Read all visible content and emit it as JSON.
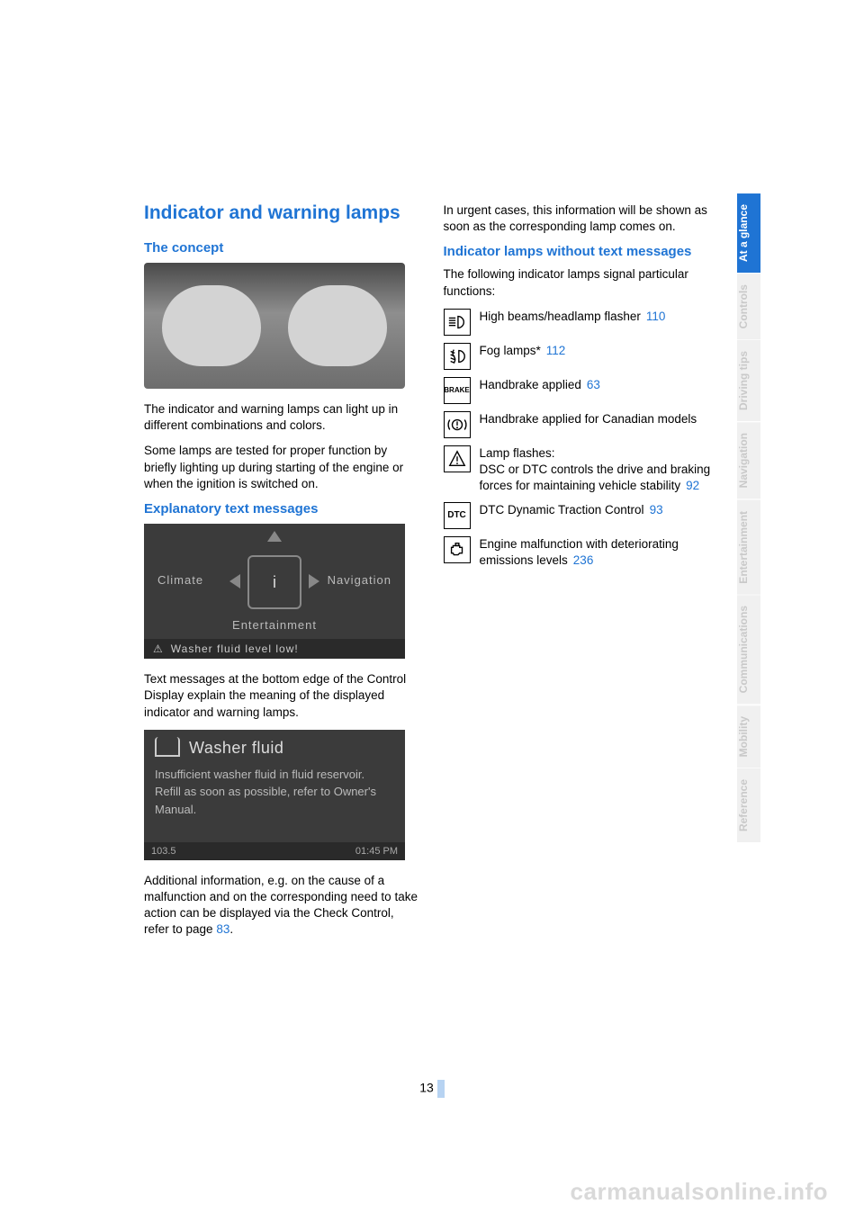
{
  "colors": {
    "link": "#1f74d4",
    "heading": "#1f74d4",
    "body_text": "#000000",
    "tab_inactive_bg": "#f0f0f0",
    "tab_inactive_fg": "#c9c9c9",
    "tab_active_bg": "#1f74d4",
    "tab_active_fg": "#ffffff",
    "watermark": "#d9d9d9",
    "figure_bg": "#3b3b3b"
  },
  "page_number": "13",
  "watermark": "carmanualsonline.info",
  "side_tabs": [
    {
      "label": "At a glance",
      "active": true
    },
    {
      "label": "Controls",
      "active": false
    },
    {
      "label": "Driving tips",
      "active": false
    },
    {
      "label": "Navigation",
      "active": false
    },
    {
      "label": "Entertainment",
      "active": false
    },
    {
      "label": "Communications",
      "active": false
    },
    {
      "label": "Mobility",
      "active": false
    },
    {
      "label": "Reference",
      "active": false
    }
  ],
  "left": {
    "title": "Indicator and warning lamps",
    "concept_heading": "The concept",
    "concept_p1": "The indicator and warning lamps can light up in different combinations and colors.",
    "concept_p2": "Some lamps are tested for proper function by briefly lighting up during starting of the engine or when the ignition is switched on.",
    "explanatory_heading": "Explanatory text messages",
    "idrive": {
      "climate": "Climate",
      "navigation": "Navigation",
      "entertainment": "Entertainment",
      "warning": "Washer fluid level low!",
      "info_glyph": "i"
    },
    "explanatory_p1": "Text messages at the bottom edge of the Control Display explain the meaning of the displayed indicator and warning lamps.",
    "washer": {
      "title": "Washer fluid",
      "line1": "Insufficient washer fluid in fluid reservoir.",
      "line2": "Refill as soon as possible, refer to Owner's Manual.",
      "status_left": "103.5",
      "status_right": "01:45 PM"
    },
    "additional_p_a": "Additional information, e.g. on the cause of a malfunction and on the corresponding need to take action can be displayed via the Check Control, refer to page ",
    "additional_ref": "83",
    "additional_p_b": "."
  },
  "right": {
    "urgent_p": "In urgent cases, this information will be shown as soon as the corresponding lamp comes on.",
    "noicon_heading": "Indicator lamps without text messages",
    "noicon_intro": "The following indicator lamps signal particular functions:",
    "lamps": [
      {
        "icon": "highbeam",
        "text": "High beams/headlamp flasher",
        "ref": "110"
      },
      {
        "icon": "fog",
        "text": "Fog lamps*",
        "ref": "112"
      },
      {
        "icon": "brake_text",
        "text": "Handbrake applied",
        "ref": "63"
      },
      {
        "icon": "brake_circle",
        "text": "Handbrake applied for Canadian models",
        "ref": ""
      },
      {
        "icon": "dsc",
        "text": "Lamp flashes:\nDSC or DTC controls the drive and braking forces for maintaining vehicle stability",
        "ref": "92"
      },
      {
        "icon": "dtc_text",
        "text": "DTC Dynamic Traction Control",
        "ref": "93"
      },
      {
        "icon": "engine",
        "text": "Engine malfunction with deteriorating emissions levels",
        "ref": "236"
      }
    ]
  }
}
